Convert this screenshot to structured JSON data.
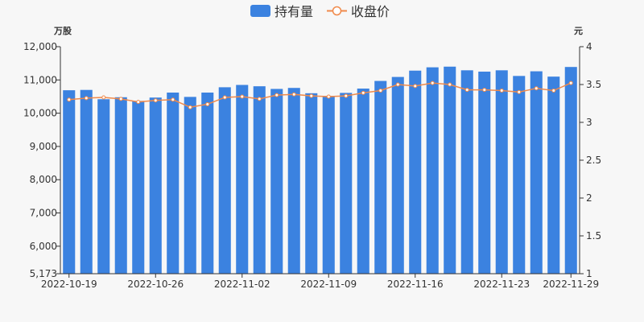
{
  "chart_data": {
    "type": "bar+line",
    "title": "",
    "legend": {
      "placement": "top-center",
      "items": [
        {
          "label": "持有量",
          "shape": "bar",
          "color": "#3b82e0"
        },
        {
          "label": "收盘价",
          "shape": "line",
          "color": "#f08a4b"
        }
      ]
    },
    "y_left": {
      "unit": "万股",
      "ylim": [
        5173,
        12000
      ],
      "ticks": [
        5173,
        6000,
        7000,
        8000,
        9000,
        10000,
        11000,
        12000
      ],
      "tick_labels": [
        "5,173",
        "6,000",
        "7,000",
        "8,000",
        "9,000",
        "10,000",
        "11,000",
        "12,000"
      ]
    },
    "y_right": {
      "unit": "元",
      "ylim": [
        1,
        4
      ],
      "ticks": [
        1,
        1.5,
        2,
        2.5,
        3,
        3.5,
        4
      ],
      "tick_labels": [
        "1",
        "1.5",
        "2",
        "2.5",
        "3",
        "3.5",
        "4"
      ]
    },
    "x_tick_labels": [
      "2022-10-19",
      "2022-10-26",
      "2022-11-02",
      "2022-11-09",
      "2022-11-16",
      "2022-11-23",
      "2022-11-29"
    ],
    "x_tick_indices": [
      0,
      5,
      10,
      15,
      20,
      25,
      29
    ],
    "categories": [
      "2022-10-19",
      "2022-10-20",
      "2022-10-21",
      "2022-10-24",
      "2022-10-25",
      "2022-10-26",
      "2022-10-27",
      "2022-10-28",
      "2022-10-31",
      "2022-11-01",
      "2022-11-02",
      "2022-11-03",
      "2022-11-04",
      "2022-11-07",
      "2022-11-08",
      "2022-11-09",
      "2022-11-10",
      "2022-11-11",
      "2022-11-14",
      "2022-11-15",
      "2022-11-16",
      "2022-11-17",
      "2022-11-18",
      "2022-11-21",
      "2022-11-22",
      "2022-11-23",
      "2022-11-24",
      "2022-11-25",
      "2022-11-28",
      "2022-11-29"
    ],
    "series": [
      {
        "name": "持有量",
        "type": "bar",
        "axis": "left",
        "color": "#3b82e0",
        "values": [
          10690,
          10700,
          10420,
          10480,
          10370,
          10470,
          10620,
          10490,
          10620,
          10780,
          10850,
          10810,
          10730,
          10760,
          10600,
          10520,
          10610,
          10740,
          10970,
          11090,
          11280,
          11380,
          11400,
          11290,
          11250,
          11290,
          11120,
          11260,
          11100,
          11390
        ]
      },
      {
        "name": "收盘价",
        "type": "line",
        "axis": "right",
        "color": "#f08a4b",
        "values": [
          3.3,
          3.32,
          3.33,
          3.31,
          3.27,
          3.29,
          3.3,
          3.2,
          3.24,
          3.33,
          3.34,
          3.31,
          3.36,
          3.37,
          3.35,
          3.34,
          3.35,
          3.39,
          3.42,
          3.5,
          3.48,
          3.52,
          3.5,
          3.43,
          3.43,
          3.42,
          3.4,
          3.45,
          3.42,
          3.52
        ]
      }
    ],
    "grid": false
  }
}
